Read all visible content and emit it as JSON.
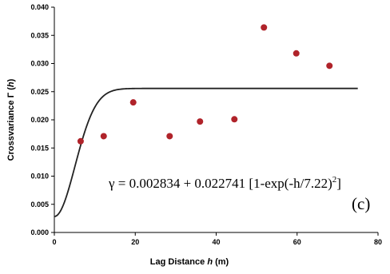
{
  "chart_data": {
    "type": "scatter",
    "xlabel_parts": [
      "Lag Distance ",
      "h",
      " (m)"
    ],
    "ylabel_parts": [
      "Crossvariance Γ (",
      "h",
      ")"
    ],
    "xlim": [
      0,
      80
    ],
    "ylim": [
      0.0,
      0.04
    ],
    "x_ticks": [
      "0",
      "20",
      "40",
      "60",
      "80"
    ],
    "y_ticks": [
      "0.000",
      "0.005",
      "0.010",
      "0.015",
      "0.020",
      "0.025",
      "0.030",
      "0.035",
      "0.040"
    ],
    "grid": false,
    "points": [
      {
        "x": 6.5,
        "y": 0.0162
      },
      {
        "x": 12.2,
        "y": 0.0171
      },
      {
        "x": 19.5,
        "y": 0.0231
      },
      {
        "x": 28.5,
        "y": 0.0171
      },
      {
        "x": 36.0,
        "y": 0.0197
      },
      {
        "x": 44.5,
        "y": 0.0201
      },
      {
        "x": 51.8,
        "y": 0.0364
      },
      {
        "x": 59.8,
        "y": 0.0318
      },
      {
        "x": 68.0,
        "y": 0.0296
      }
    ],
    "point_color": "#b0232a",
    "fit_model": {
      "nugget": 0.002834,
      "sill": 0.022741,
      "range": 7.22,
      "x_range": [
        0,
        75
      ],
      "color": "#222222"
    },
    "equation_main": "γ = 0.002834 + 0.022741 [1-exp(-h/7.22)",
    "equation_sup": "2",
    "equation_end": "]",
    "panel_label": "(c)"
  }
}
